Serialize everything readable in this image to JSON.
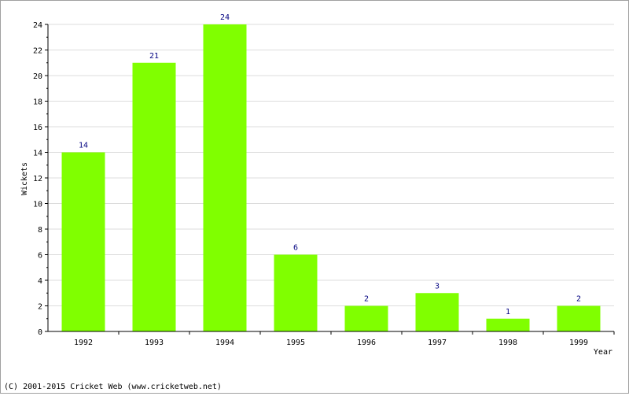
{
  "chart_data": {
    "type": "bar",
    "title": "",
    "xlabel": "Year",
    "ylabel": "Wickets",
    "categories": [
      "1992",
      "1993",
      "1994",
      "1995",
      "1996",
      "1997",
      "1998",
      "1999"
    ],
    "values": [
      14,
      21,
      24,
      6,
      2,
      3,
      1,
      2
    ],
    "ylim": [
      0,
      24
    ],
    "yticks": [
      0,
      2,
      4,
      6,
      8,
      10,
      12,
      14,
      16,
      18,
      20,
      22,
      24
    ],
    "grid": true,
    "bar_color": "#80ff00",
    "label_color": "#000080"
  },
  "footer": {
    "copyright": "(C) 2001-2015 Cricket Web (www.cricketweb.net)"
  }
}
